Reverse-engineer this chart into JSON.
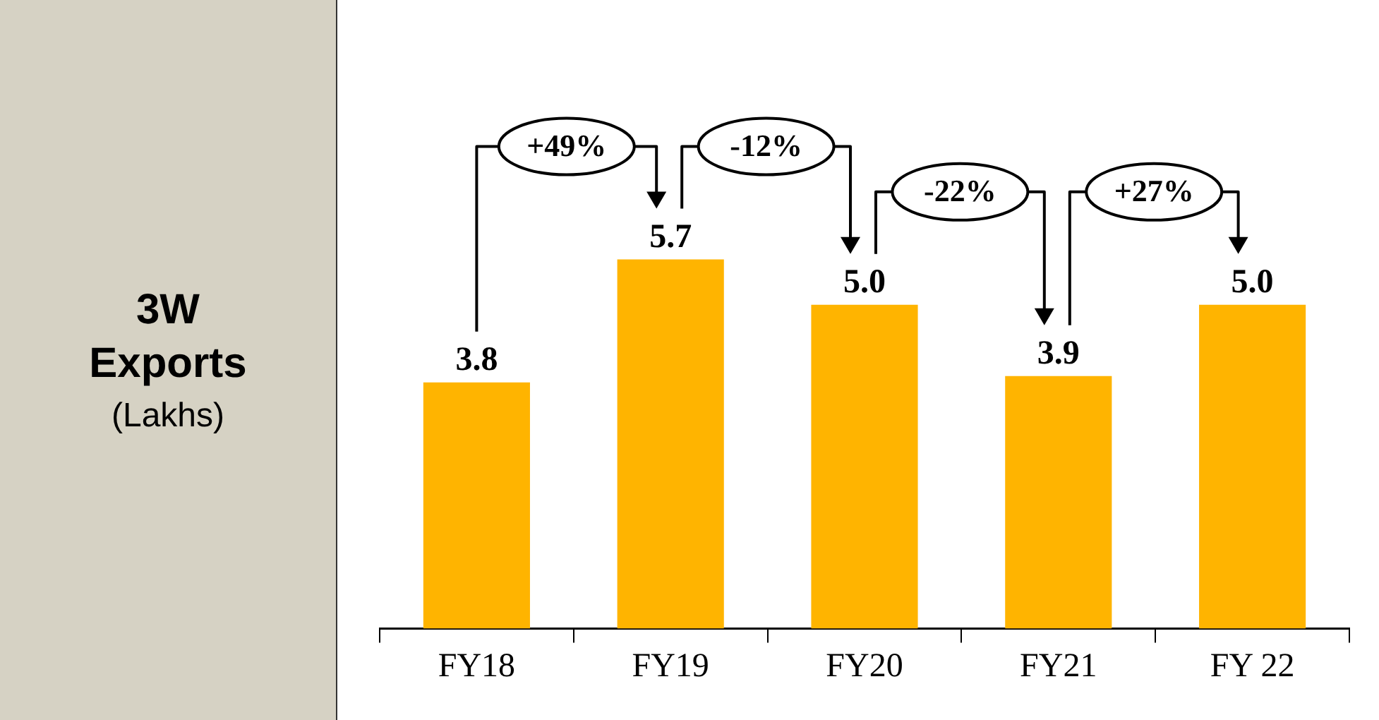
{
  "chart_data": {
    "type": "bar",
    "title": "3W Exports",
    "subtitle": "(Lakhs)",
    "categories": [
      "FY18",
      "FY19",
      "FY20",
      "FY21",
      "FY 22"
    ],
    "values": [
      3.8,
      5.7,
      5.0,
      3.9,
      5.0
    ],
    "color": "#ffb400",
    "value_labels": [
      "3.8",
      "5.7",
      "5.0",
      "3.9",
      "5.0"
    ],
    "tick_labels": "x",
    "grid": false,
    "legend": false,
    "annotations": [
      "+49%",
      "-12%",
      "-22%",
      "+27%"
    ]
  }
}
